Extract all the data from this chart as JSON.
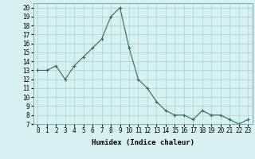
{
  "x": [
    0,
    1,
    2,
    3,
    4,
    5,
    6,
    7,
    8,
    9,
    10,
    11,
    12,
    13,
    14,
    15,
    16,
    17,
    18,
    19,
    20,
    21,
    22,
    23
  ],
  "y": [
    13,
    13,
    13.5,
    12,
    13.5,
    14.5,
    15.5,
    16.5,
    19,
    20,
    15.5,
    12,
    11,
    9.5,
    8.5,
    8,
    8,
    7.5,
    8.5,
    8,
    8,
    7.5,
    7,
    7.5
  ],
  "line_color": "#2e6b5e",
  "marker": "+",
  "marker_size": 3,
  "marker_lw": 0.8,
  "bg_color": "#d7f0f0",
  "grid_color": "#b0d0d0",
  "xlabel": "Humidex (Indice chaleur)",
  "xlim": [
    -0.5,
    23.5
  ],
  "ylim": [
    7,
    20.5
  ],
  "yticks": [
    7,
    8,
    9,
    10,
    11,
    12,
    13,
    14,
    15,
    16,
    17,
    18,
    19,
    20
  ],
  "xticks": [
    0,
    1,
    2,
    3,
    4,
    5,
    6,
    7,
    8,
    9,
    10,
    11,
    12,
    13,
    14,
    15,
    16,
    17,
    18,
    19,
    20,
    21,
    22,
    23
  ],
  "label_fontsize": 6.5,
  "tick_fontsize": 5.5
}
